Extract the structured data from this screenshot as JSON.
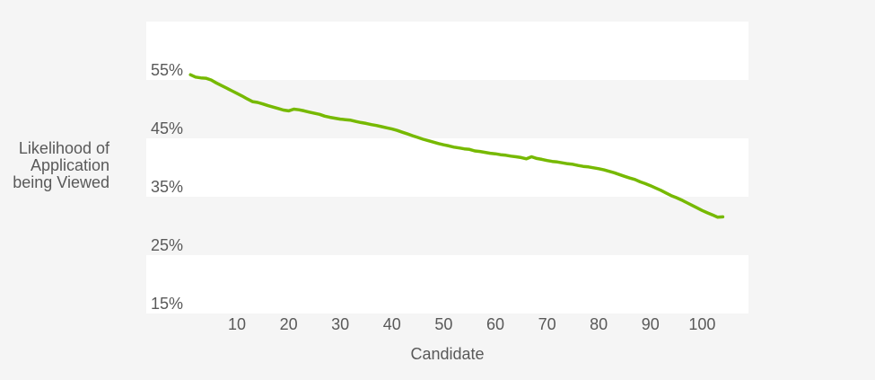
{
  "chart_data": {
    "type": "line",
    "xlabel": "Candidate",
    "ylabel": "Likelihood of\nApplication\nbeing Viewed",
    "x_ticks": [
      10,
      20,
      30,
      40,
      50,
      60,
      70,
      80,
      90,
      100
    ],
    "y_ticks": [
      {
        "label": "55%",
        "value": 55
      },
      {
        "label": "45%",
        "value": 45
      },
      {
        "label": "35%",
        "value": 35
      },
      {
        "label": "25%",
        "value": 25
      },
      {
        "label": "15%",
        "value": 15
      }
    ],
    "ylim": [
      15,
      65
    ],
    "white_band_lower_edges": [
      55,
      35,
      15
    ],
    "band_height_pct": 10,
    "grid": "horizontal-bands",
    "legend": "none",
    "series": [
      {
        "name": "Likelihood of Application being Viewed",
        "x_start": 1,
        "values": [
          55.9,
          55.5,
          55.35,
          55.3,
          55.0,
          54.5,
          54.05,
          53.6,
          53.15,
          52.7,
          52.25,
          51.75,
          51.3,
          51.15,
          50.9,
          50.6,
          50.35,
          50.1,
          49.85,
          49.7,
          50.0,
          49.9,
          49.7,
          49.5,
          49.3,
          49.1,
          48.8,
          48.6,
          48.45,
          48.3,
          48.2,
          48.1,
          47.9,
          47.7,
          47.55,
          47.35,
          47.2,
          47.0,
          46.8,
          46.6,
          46.35,
          46.05,
          45.75,
          45.45,
          45.15,
          44.85,
          44.6,
          44.35,
          44.1,
          43.9,
          43.7,
          43.5,
          43.35,
          43.2,
          43.1,
          42.85,
          42.75,
          42.6,
          42.45,
          42.35,
          42.2,
          42.1,
          41.95,
          41.85,
          41.7,
          41.5,
          41.85,
          41.55,
          41.4,
          41.2,
          41.05,
          40.95,
          40.8,
          40.65,
          40.55,
          40.35,
          40.2,
          40.1,
          39.95,
          39.8,
          39.6,
          39.35,
          39.1,
          38.8,
          38.5,
          38.2,
          37.95,
          37.55,
          37.25,
          36.9,
          36.5,
          36.1,
          35.65,
          35.2,
          34.85,
          34.45,
          34.0,
          33.55,
          33.1,
          32.65,
          32.25,
          31.9,
          31.5,
          31.55
        ]
      }
    ],
    "colors": {
      "line": "#76b900",
      "plot_band_white": "#ffffff",
      "background": "#f5f5f5",
      "text": "#595959"
    }
  }
}
